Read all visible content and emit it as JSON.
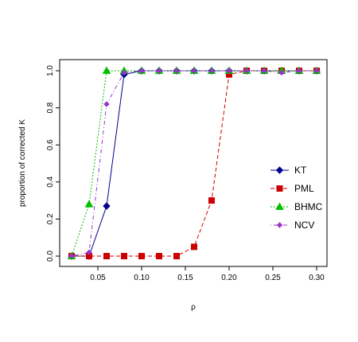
{
  "chart_data": {
    "type": "line",
    "title": "",
    "xlabel": "ρ",
    "ylabel": "proportion of corrected K",
    "xlim": [
      0.02,
      0.3
    ],
    "ylim": [
      0.0,
      1.0
    ],
    "x_ticks": [
      0.05,
      0.1,
      0.15,
      0.2,
      0.25,
      0.3
    ],
    "x_tick_labels": [
      "0.05",
      "0.10",
      "0.15",
      "0.20",
      "0.25",
      "0.30"
    ],
    "y_ticks": [
      0.0,
      0.2,
      0.4,
      0.6,
      0.8,
      1.0
    ],
    "y_tick_labels": [
      "0.0",
      "0.2",
      "0.4",
      "0.6",
      "0.8",
      "1.0"
    ],
    "grid": false,
    "legend_position": "right",
    "x": [
      0.02,
      0.04,
      0.06,
      0.08,
      0.1,
      0.12,
      0.14,
      0.16,
      0.18,
      0.2,
      0.22,
      0.24,
      0.26,
      0.28,
      0.3
    ],
    "series": [
      {
        "name": "KT",
        "color": "#00008B",
        "marker": "diamond",
        "line": "solid",
        "values": [
          0.0,
          0.0,
          0.27,
          0.98,
          1.0,
          1.0,
          1.0,
          1.0,
          1.0,
          1.0,
          1.0,
          1.0,
          1.0,
          1.0,
          1.0
        ]
      },
      {
        "name": "PML",
        "color": "#CC0000",
        "marker": "square",
        "line": "dashed",
        "values": [
          0.0,
          0.0,
          0.0,
          0.0,
          0.0,
          0.0,
          0.0,
          0.05,
          0.3,
          0.98,
          1.0,
          1.0,
          1.0,
          1.0,
          1.0
        ]
      },
      {
        "name": "BHMC",
        "color": "#00C000",
        "marker": "triangle",
        "line": "dotted",
        "values": [
          0.0,
          0.28,
          1.0,
          1.0,
          1.0,
          1.0,
          1.0,
          1.0,
          1.0,
          1.0,
          1.0,
          1.0,
          1.0,
          1.0,
          1.0
        ]
      },
      {
        "name": "NCV",
        "color": "#9933CC",
        "marker": "diamond-small",
        "line": "dotdash",
        "values": [
          0.0,
          0.02,
          0.82,
          0.99,
          1.0,
          1.0,
          1.0,
          1.0,
          1.0,
          1.0,
          1.0,
          1.0,
          0.99,
          1.0,
          1.0
        ]
      }
    ]
  }
}
